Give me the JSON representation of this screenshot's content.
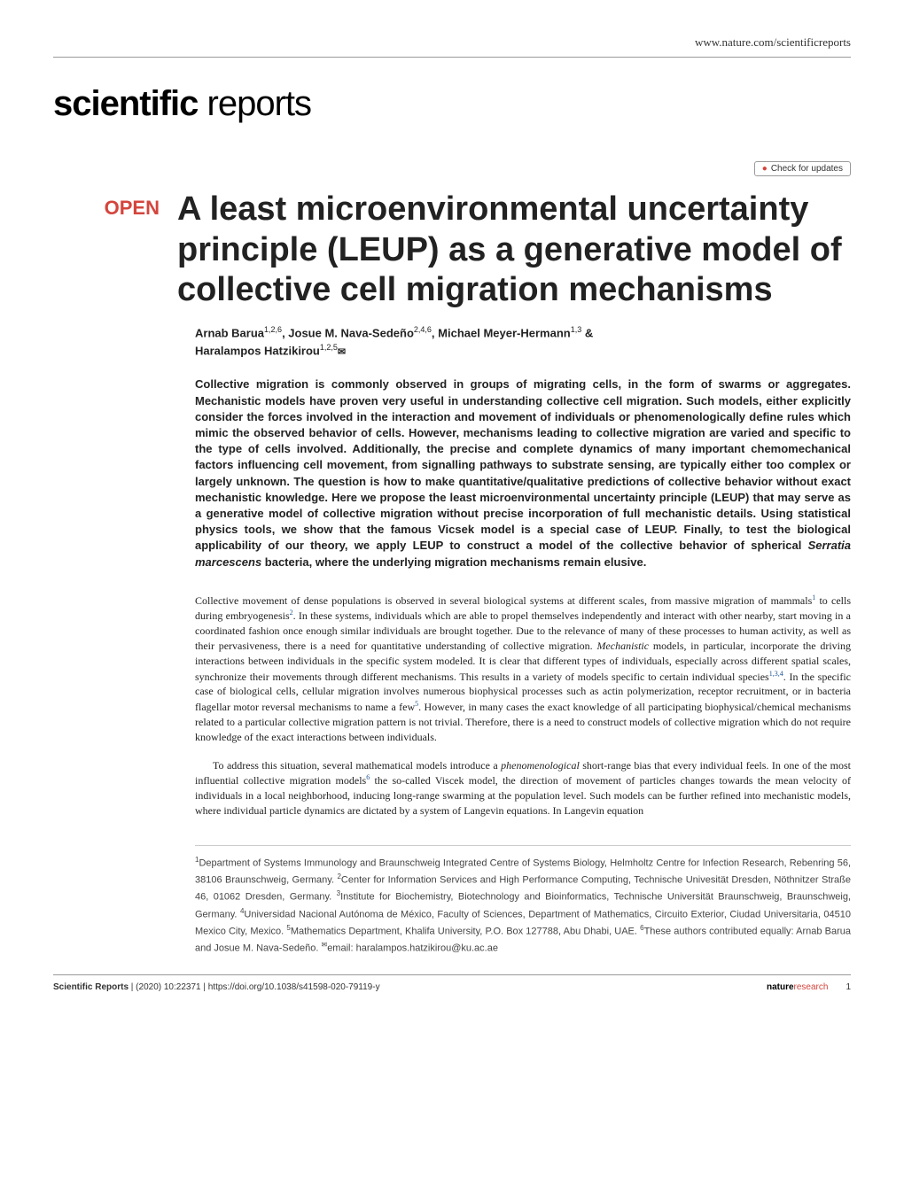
{
  "header": {
    "url": "www.nature.com/scientificreports",
    "journal_bold": "scientific",
    "journal_light": " reports",
    "check_updates": "Check for updates"
  },
  "article": {
    "open_badge": "OPEN",
    "title": "A least microenvironmental uncertainty principle (LEUP) as a generative model of collective cell migration mechanisms",
    "authors_line1": "Arnab Barua",
    "authors_sup1": "1,2,6",
    "authors_sep1": ", Josue M. Nava-Sedeño",
    "authors_sup2": "2,4,6",
    "authors_sep2": ", Michael Meyer-Hermann",
    "authors_sup3": "1,3",
    "authors_sep3": " & ",
    "authors_line2": "Haralampos Hatzikirou",
    "authors_sup4": "1,2,5",
    "abstract": "Collective migration is commonly observed in groups of migrating cells, in the form of swarms or aggregates. Mechanistic models have proven very useful in understanding collective cell migration. Such models, either explicitly consider the forces involved in the interaction and movement of individuals or phenomenologically define rules which mimic the observed behavior of cells. However, mechanisms leading to collective migration are varied and specific to the type of cells involved. Additionally, the precise and complete dynamics of many important chemomechanical factors influencing cell movement, from signalling pathways to substrate sensing, are typically either too complex or largely unknown. The question is how to make quantitative/qualitative predictions of collective behavior without exact mechanistic knowledge. Here we propose the least microenvironmental uncertainty principle (LEUP) that may serve as a generative model of collective migration without precise incorporation of full mechanistic details. Using statistical physics tools, we show that the famous Vicsek model is a special case of LEUP. Finally, to test the biological applicability of our theory, we apply LEUP to construct a model of the collective behavior of spherical ",
    "abstract_italic": "Serratia marcescens",
    "abstract_end": " bacteria, where the underlying migration mechanisms remain elusive.",
    "body_p1": "Collective movement of dense populations is observed in several biological systems at different scales, from massive migration of mammals",
    "body_p1_ref1": "1",
    "body_p1_cont1": " to cells during embryogenesis",
    "body_p1_ref2": "2",
    "body_p1_cont2": ". In these systems, individuals which are able to propel themselves independently and interact with other nearby, start moving in a coordinated fashion once enough similar individuals are brought together. Due to the relevance of many of these processes to human activity, as well as their pervasiveness, there is a need for quantitative understanding of collective migration. ",
    "body_p1_italic1": "Mechanistic",
    "body_p1_cont3": " models, in particular, incorporate the driving interactions between individuals in the specific system modeled. It is clear that different types of individuals, especially across different spatial scales, synchronize their movements through different mechanisms. This results in a variety of models specific to certain individual species",
    "body_p1_ref3": "1,3,4",
    "body_p1_cont4": ". In the specific case of biological cells, cellular migration involves numerous biophysical processes such as actin polymerization, receptor recruitment, or in bacteria flagellar motor reversal mechanisms to name a few",
    "body_p1_ref4": "5",
    "body_p1_cont5": ". However, in many cases the exact knowledge of all participating biophysical/chemical mechanisms related to a particular collective migration pattern is not trivial. Therefore, there is a need to construct models of collective migration which do not require knowledge of the exact interactions between individuals.",
    "body_p2": "To address this situation, several mathematical models introduce a ",
    "body_p2_italic1": "phenomenological",
    "body_p2_cont1": " short-range bias that every individual feels. In one of the most influential collective migration models",
    "body_p2_ref1": "6",
    "body_p2_cont2": " the so-called Viscek model, the direction of movement of particles changes towards the mean velocity of individuals in a local neighborhood, inducing long-range swarming at the population level. Such models can be further refined into mechanistic models, where individual particle dynamics are dictated by a system of Langevin equations. In Langevin equation",
    "affiliations": "Department of Systems Immunology and Braunschweig Integrated Centre of Systems Biology, Helmholtz Centre for Infection Research, Rebenring 56, 38106 Braunschweig, Germany. ",
    "affil_sup2": "2",
    "affil2": "Center for Information Services and High Performance Computing, Technische Univesität Dresden, Nöthnitzer Straße 46, 01062 Dresden, Germany. ",
    "affil_sup3": "3",
    "affil3": "Institute for Biochemistry, Biotechnology and Bioinformatics, Technische Universität Braunschweig, Braunschweig, Germany. ",
    "affil_sup4": "4",
    "affil4": "Universidad Nacional Autónoma de México, Faculty of Sciences, Department of Mathematics, Circuito Exterior, Ciudad Universitaria, 04510 Mexico City, Mexico. ",
    "affil_sup5": "5",
    "affil5": "Mathematics Department, Khalifa University, P.O. Box 127788, Abu Dhabi, UAE. ",
    "affil_sup6": "6",
    "affil6": "These authors contributed equally: Arnab Barua and Josue M. Nava-Sedeño. ",
    "affil_email_label": "email: ",
    "affil_email": "haralampos.hatzikirou@ku.ac.ae",
    "affil_sup1": "1"
  },
  "footer": {
    "journal": "Scientific Reports",
    "citation": " |        (2020) 10:22371  | ",
    "doi": "https://doi.org/10.1038/s41598-020-79119-y",
    "nature": "nature",
    "research": "research",
    "page": "1"
  },
  "colors": {
    "accent_red": "#d4453d",
    "link_blue": "#1a5490",
    "text": "#222222",
    "border": "#999999"
  }
}
